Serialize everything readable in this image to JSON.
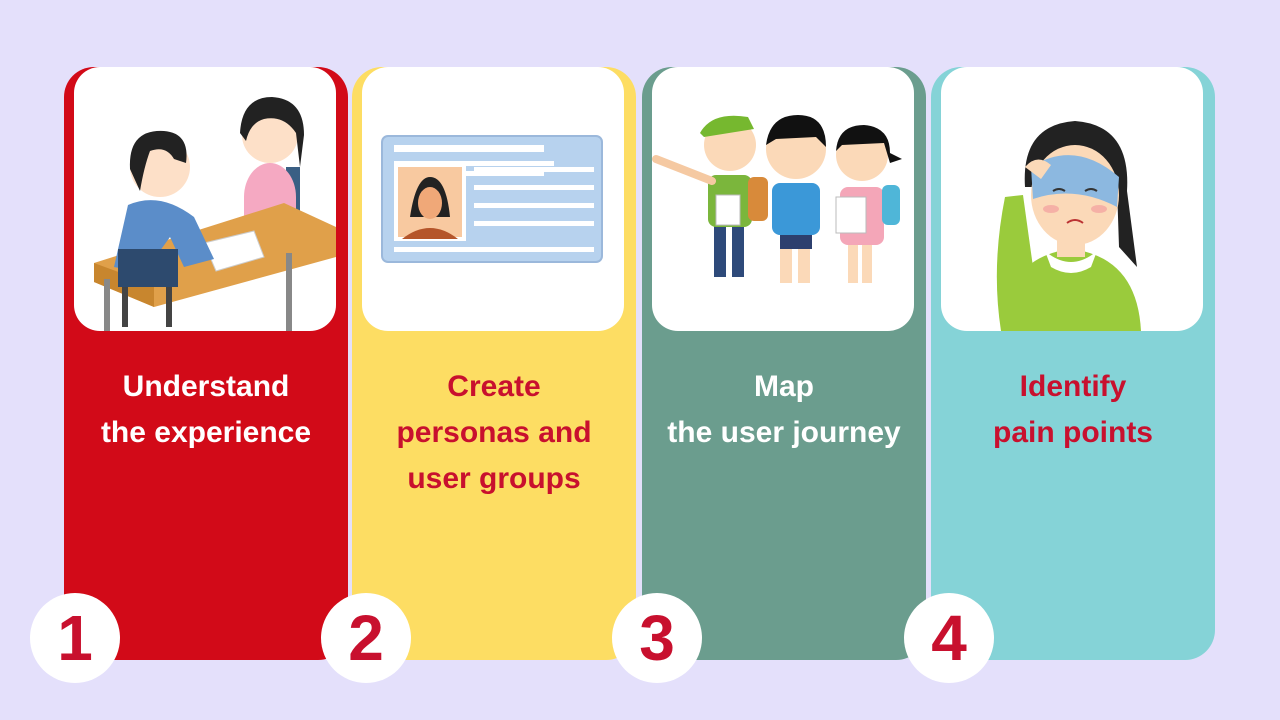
{
  "steps": [
    {
      "number": "1",
      "title_lines": [
        "Understand",
        "the experience"
      ],
      "illustration": "interview-illustration",
      "card_color": "#d20a18",
      "title_color": "#ffffff"
    },
    {
      "number": "2",
      "title_lines": [
        "Create",
        "personas and",
        "user groups"
      ],
      "illustration": "persona-id-card-illustration",
      "card_color": "#fddd63",
      "title_color": "#c8102e"
    },
    {
      "number": "3",
      "title_lines": [
        "Map",
        "the user journey"
      ],
      "illustration": "kids-exploring-illustration",
      "card_color": "#6b9d8e",
      "title_color": "#ffffff"
    },
    {
      "number": "4",
      "title_lines": [
        "Identify",
        "pain points"
      ],
      "illustration": "worried-woman-illustration",
      "card_color": "#85d3d7",
      "title_color": "#c8102e"
    }
  ],
  "colors": {
    "background": "#e4e0fb",
    "number_color": "#c8102e"
  }
}
